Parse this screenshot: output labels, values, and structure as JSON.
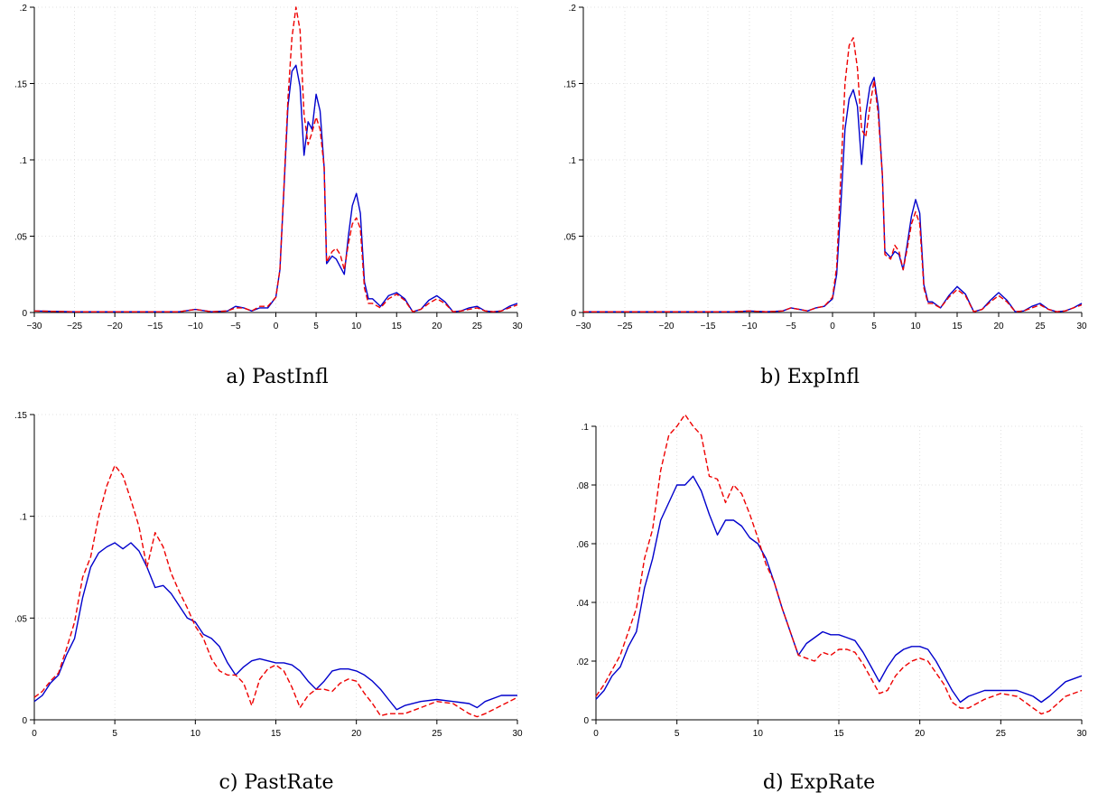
{
  "chart_data": [
    {
      "type": "line",
      "caption": "a) PastInfl",
      "xlim": [
        -30,
        30
      ],
      "ylim": [
        0,
        0.2
      ],
      "xticks": [
        -30,
        -25,
        -20,
        -15,
        -10,
        -5,
        0,
        5,
        10,
        15,
        20,
        25,
        30
      ],
      "xtick_labels": [
        "−30",
        "−25",
        "−20",
        "−15",
        "−10",
        "−5",
        "0",
        "5",
        "10",
        "15",
        "20",
        "25",
        "30"
      ],
      "yticks": [
        0,
        0.05,
        0.1,
        0.15,
        0.2
      ],
      "ytick_labels": [
        "0",
        ".05",
        ".1",
        ".15",
        ".2"
      ],
      "grid": true,
      "series": [
        {
          "color": "#0000cc",
          "dash": "solid",
          "x": [
            -30,
            -25,
            -20,
            -15,
            -12,
            -10,
            -8,
            -6,
            -5,
            -4,
            -3,
            -2,
            -1,
            0,
            0.5,
            1,
            1.5,
            2,
            2.5,
            3,
            3.5,
            4,
            4.5,
            5,
            5.5,
            6,
            6.3,
            7,
            7.5,
            8,
            8.5,
            9,
            9.5,
            10,
            10.5,
            11,
            11.5,
            12,
            13,
            14,
            15,
            16,
            17,
            18,
            19,
            20,
            21,
            22,
            23,
            24,
            25,
            26,
            27,
            28,
            29,
            30
          ],
          "y": [
            0.001,
            0.0005,
            0.0005,
            0.0005,
            0.0005,
            0.002,
            0.0005,
            0.001,
            0.004,
            0.003,
            0.001,
            0.003,
            0.003,
            0.01,
            0.028,
            0.08,
            0.135,
            0.158,
            0.162,
            0.148,
            0.103,
            0.125,
            0.12,
            0.143,
            0.132,
            0.095,
            0.032,
            0.037,
            0.035,
            0.03,
            0.025,
            0.05,
            0.07,
            0.078,
            0.065,
            0.02,
            0.009,
            0.009,
            0.004,
            0.011,
            0.013,
            0.009,
            0.0005,
            0.002,
            0.008,
            0.011,
            0.007,
            0.0005,
            0.001,
            0.003,
            0.004,
            0.001,
            0.0005,
            0.001,
            0.004,
            0.006
          ]
        },
        {
          "color": "#ee0000",
          "dash": "dashed",
          "x": [
            -30,
            -25,
            -20,
            -15,
            -12,
            -10,
            -8,
            -6,
            -5,
            -4,
            -3,
            -2,
            -1,
            0,
            0.5,
            1,
            1.5,
            2,
            2.5,
            3,
            3.5,
            4,
            4.5,
            5,
            5.5,
            6,
            6.3,
            7,
            7.5,
            8,
            8.5,
            9,
            9.5,
            10,
            10.5,
            11,
            11.5,
            12,
            13,
            14,
            15,
            16,
            17,
            18,
            19,
            20,
            21,
            22,
            23,
            24,
            25,
            26,
            27,
            28,
            29,
            30
          ],
          "y": [
            0.001,
            0.0005,
            0.0005,
            0.0005,
            0.0005,
            0.002,
            0.0005,
            0.001,
            0.003,
            0.003,
            0.001,
            0.004,
            0.004,
            0.01,
            0.028,
            0.082,
            0.14,
            0.18,
            0.2,
            0.185,
            0.13,
            0.11,
            0.118,
            0.128,
            0.12,
            0.095,
            0.033,
            0.04,
            0.042,
            0.038,
            0.028,
            0.045,
            0.058,
            0.062,
            0.055,
            0.016,
            0.006,
            0.006,
            0.003,
            0.009,
            0.012,
            0.008,
            0.0005,
            0.002,
            0.006,
            0.009,
            0.006,
            0.0005,
            0.001,
            0.002,
            0.003,
            0.001,
            0.0005,
            0.001,
            0.003,
            0.005
          ]
        }
      ]
    },
    {
      "type": "line",
      "caption": "b) ExpInfl",
      "xlim": [
        -30,
        30
      ],
      "ylim": [
        0,
        0.2
      ],
      "xticks": [
        -30,
        -25,
        -20,
        -15,
        -10,
        -5,
        0,
        5,
        10,
        15,
        20,
        25,
        30
      ],
      "xtick_labels": [
        "−30",
        "−25",
        "−20",
        "−15",
        "−10",
        "−5",
        "0",
        "5",
        "10",
        "15",
        "20",
        "25",
        "30"
      ],
      "yticks": [
        0,
        0.05,
        0.1,
        0.15,
        0.2
      ],
      "ytick_labels": [
        "0",
        ".05",
        ".1",
        ".15",
        ".2"
      ],
      "grid": true,
      "series": [
        {
          "color": "#0000cc",
          "dash": "solid",
          "x": [
            -30,
            -25,
            -20,
            -15,
            -12,
            -10,
            -8,
            -6,
            -5,
            -4,
            -3,
            -2,
            -1,
            0,
            0.5,
            1,
            1.5,
            2,
            2.5,
            3,
            3.5,
            4,
            4.5,
            5,
            5.5,
            6,
            6.3,
            7,
            7.5,
            8,
            8.5,
            9,
            9.5,
            10,
            10.5,
            11,
            11.5,
            12,
            13,
            14,
            15,
            16,
            17,
            18,
            19,
            20,
            21,
            22,
            23,
            24,
            25,
            26,
            27,
            28,
            29,
            30
          ],
          "y": [
            0.0005,
            0.0005,
            0.0005,
            0.0005,
            0.0005,
            0.001,
            0.0005,
            0.001,
            0.003,
            0.002,
            0.001,
            0.003,
            0.004,
            0.009,
            0.025,
            0.07,
            0.12,
            0.14,
            0.146,
            0.135,
            0.097,
            0.13,
            0.148,
            0.154,
            0.135,
            0.09,
            0.04,
            0.036,
            0.04,
            0.038,
            0.028,
            0.045,
            0.063,
            0.074,
            0.065,
            0.018,
            0.007,
            0.007,
            0.003,
            0.011,
            0.017,
            0.012,
            0.0005,
            0.002,
            0.008,
            0.013,
            0.008,
            0.0005,
            0.001,
            0.004,
            0.006,
            0.002,
            0.0005,
            0.001,
            0.003,
            0.006
          ]
        },
        {
          "color": "#ee0000",
          "dash": "dashed",
          "x": [
            -30,
            -25,
            -20,
            -15,
            -12,
            -10,
            -8,
            -6,
            -5,
            -4,
            -3,
            -2,
            -1,
            0,
            0.5,
            1,
            1.5,
            2,
            2.5,
            3,
            3.5,
            4,
            4.5,
            5,
            5.5,
            6,
            6.3,
            7,
            7.5,
            8,
            8.5,
            9,
            9.5,
            10,
            10.5,
            11,
            11.5,
            12,
            13,
            14,
            15,
            16,
            17,
            18,
            19,
            20,
            21,
            22,
            23,
            24,
            25,
            26,
            27,
            28,
            29,
            30
          ],
          "y": [
            0.0005,
            0.0005,
            0.0005,
            0.0005,
            0.0005,
            0.001,
            0.0005,
            0.001,
            0.003,
            0.002,
            0.001,
            0.003,
            0.004,
            0.01,
            0.03,
            0.09,
            0.15,
            0.175,
            0.18,
            0.16,
            0.12,
            0.115,
            0.135,
            0.152,
            0.13,
            0.09,
            0.038,
            0.035,
            0.044,
            0.04,
            0.028,
            0.042,
            0.058,
            0.066,
            0.058,
            0.016,
            0.006,
            0.006,
            0.003,
            0.01,
            0.015,
            0.011,
            0.0005,
            0.002,
            0.007,
            0.011,
            0.007,
            0.0005,
            0.001,
            0.003,
            0.005,
            0.002,
            0.0005,
            0.001,
            0.003,
            0.005
          ]
        }
      ]
    },
    {
      "type": "line",
      "caption": "c) PastRate",
      "xlim": [
        0,
        30
      ],
      "ylim": [
        0,
        0.15
      ],
      "xticks": [
        0,
        5,
        10,
        15,
        20,
        25,
        30
      ],
      "xtick_labels": [
        "0",
        "5",
        "10",
        "15",
        "20",
        "25",
        "30"
      ],
      "yticks": [
        0,
        0.05,
        0.1,
        0.15
      ],
      "ytick_labels": [
        "0",
        ".05",
        ".1",
        ".15"
      ],
      "grid": true,
      "series": [
        {
          "color": "#0000cc",
          "dash": "solid",
          "x": [
            0,
            0.5,
            1,
            1.5,
            2,
            2.5,
            3,
            3.5,
            4,
            4.5,
            5,
            5.5,
            6,
            6.5,
            7,
            7.5,
            8,
            8.5,
            9,
            9.5,
            10,
            10.5,
            11,
            11.5,
            12,
            12.5,
            13,
            13.5,
            14,
            14.5,
            15,
            15.5,
            16,
            16.5,
            17,
            17.5,
            18,
            18.5,
            19,
            19.5,
            20,
            20.5,
            21,
            21.5,
            22,
            22.5,
            23,
            24,
            25,
            26,
            27,
            27.5,
            28,
            29,
            30
          ],
          "y": [
            0.009,
            0.012,
            0.018,
            0.022,
            0.032,
            0.04,
            0.06,
            0.075,
            0.082,
            0.085,
            0.087,
            0.084,
            0.087,
            0.083,
            0.075,
            0.065,
            0.066,
            0.062,
            0.056,
            0.05,
            0.048,
            0.042,
            0.04,
            0.036,
            0.028,
            0.022,
            0.026,
            0.029,
            0.03,
            0.029,
            0.028,
            0.028,
            0.027,
            0.024,
            0.019,
            0.015,
            0.019,
            0.024,
            0.025,
            0.025,
            0.024,
            0.022,
            0.019,
            0.015,
            0.01,
            0.005,
            0.007,
            0.009,
            0.01,
            0.009,
            0.008,
            0.006,
            0.009,
            0.012,
            0.012
          ]
        },
        {
          "color": "#ee0000",
          "dash": "dashed",
          "x": [
            0,
            0.5,
            1,
            1.5,
            2,
            2.5,
            3,
            3.5,
            4,
            4.5,
            5,
            5.5,
            6,
            6.5,
            7,
            7.5,
            8,
            8.5,
            9,
            9.5,
            10,
            10.5,
            11,
            11.5,
            12,
            12.5,
            13,
            13.5,
            14,
            14.5,
            15,
            15.5,
            16,
            16.5,
            17,
            17.5,
            18,
            18.5,
            19,
            19.5,
            20,
            20.5,
            21,
            21.5,
            22,
            22.5,
            23,
            24,
            25,
            26,
            27,
            27.5,
            28,
            29,
            30
          ],
          "y": [
            0.011,
            0.014,
            0.019,
            0.023,
            0.035,
            0.048,
            0.07,
            0.08,
            0.1,
            0.115,
            0.125,
            0.12,
            0.108,
            0.095,
            0.075,
            0.092,
            0.085,
            0.072,
            0.063,
            0.055,
            0.046,
            0.04,
            0.03,
            0.024,
            0.022,
            0.022,
            0.018,
            0.007,
            0.02,
            0.025,
            0.027,
            0.024,
            0.016,
            0.006,
            0.012,
            0.015,
            0.015,
            0.014,
            0.018,
            0.02,
            0.019,
            0.013,
            0.008,
            0.002,
            0.003,
            0.003,
            0.003,
            0.006,
            0.009,
            0.008,
            0.003,
            0.0015,
            0.003,
            0.007,
            0.011
          ]
        }
      ]
    },
    {
      "type": "line",
      "caption": "d) ExpRate",
      "xlim": [
        0,
        30
      ],
      "ylim": [
        0,
        0.1
      ],
      "xticks": [
        0,
        5,
        10,
        15,
        20,
        25,
        30
      ],
      "xtick_labels": [
        "0",
        "5",
        "10",
        "15",
        "20",
        "25",
        "30"
      ],
      "yticks": [
        0,
        0.02,
        0.04,
        0.06,
        0.08,
        0.1
      ],
      "ytick_labels": [
        "0",
        ".02",
        ".04",
        ".06",
        ".08",
        ".1"
      ],
      "grid": true,
      "series": [
        {
          "color": "#0000cc",
          "dash": "solid",
          "x": [
            0,
            0.5,
            1,
            1.5,
            2,
            2.5,
            3,
            3.5,
            4,
            4.5,
            5,
            5.5,
            6,
            6.5,
            7,
            7.5,
            8,
            8.5,
            9,
            9.5,
            10,
            10.5,
            11,
            11.5,
            12,
            12.5,
            13,
            13.5,
            14,
            14.5,
            15,
            15.5,
            16,
            16.5,
            17,
            17.5,
            18,
            18.5,
            19,
            19.5,
            20,
            20.5,
            21,
            21.5,
            22,
            22.5,
            23,
            24,
            25,
            26,
            27,
            27.5,
            28,
            29,
            30
          ],
          "y": [
            0.007,
            0.01,
            0.015,
            0.018,
            0.025,
            0.03,
            0.045,
            0.055,
            0.068,
            0.074,
            0.08,
            0.08,
            0.083,
            0.078,
            0.07,
            0.063,
            0.068,
            0.068,
            0.066,
            0.062,
            0.06,
            0.055,
            0.047,
            0.038,
            0.03,
            0.022,
            0.026,
            0.028,
            0.03,
            0.029,
            0.029,
            0.028,
            0.027,
            0.023,
            0.018,
            0.013,
            0.018,
            0.022,
            0.024,
            0.025,
            0.025,
            0.024,
            0.02,
            0.015,
            0.01,
            0.006,
            0.008,
            0.01,
            0.01,
            0.01,
            0.008,
            0.006,
            0.008,
            0.013,
            0.015
          ]
        },
        {
          "color": "#ee0000",
          "dash": "dashed",
          "x": [
            0,
            0.5,
            1,
            1.5,
            2,
            2.5,
            3,
            3.5,
            4,
            4.5,
            5,
            5.5,
            6,
            6.5,
            7,
            7.5,
            8,
            8.5,
            9,
            9.5,
            10,
            10.5,
            11,
            11.5,
            12,
            12.5,
            13,
            13.5,
            14,
            14.5,
            15,
            15.5,
            16,
            16.5,
            17,
            17.5,
            18,
            18.5,
            19,
            19.5,
            20,
            20.5,
            21,
            21.5,
            22,
            22.5,
            23,
            24,
            25,
            26,
            27,
            27.5,
            28,
            29,
            30
          ],
          "y": [
            0.008,
            0.012,
            0.017,
            0.022,
            0.03,
            0.038,
            0.055,
            0.065,
            0.085,
            0.097,
            0.1,
            0.104,
            0.1,
            0.097,
            0.083,
            0.082,
            0.074,
            0.08,
            0.077,
            0.07,
            0.062,
            0.053,
            0.047,
            0.038,
            0.03,
            0.022,
            0.021,
            0.02,
            0.023,
            0.022,
            0.024,
            0.024,
            0.023,
            0.019,
            0.014,
            0.009,
            0.01,
            0.015,
            0.018,
            0.02,
            0.021,
            0.02,
            0.016,
            0.012,
            0.006,
            0.004,
            0.004,
            0.007,
            0.009,
            0.008,
            0.004,
            0.002,
            0.003,
            0.008,
            0.01
          ]
        }
      ]
    }
  ]
}
